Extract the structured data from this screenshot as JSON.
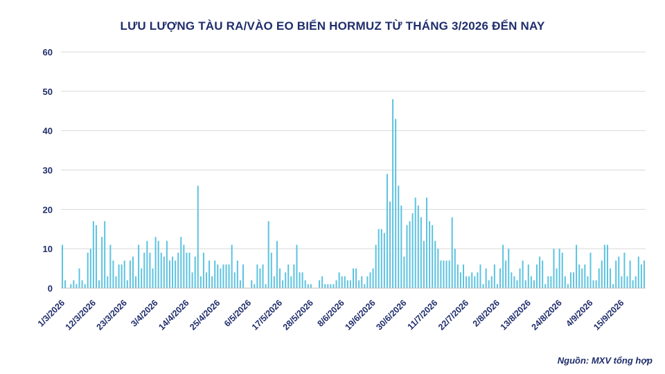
{
  "chart_data": {
    "type": "bar",
    "title": "LƯU LƯỢNG TÀU RA/VÀO EO BIỂN HORMUZ TỪ THÁNG 3/2026 ĐẾN NAY",
    "source": "Nguồn: MXV tổng hợp",
    "xlabel": "",
    "ylabel": "",
    "ylim": [
      0,
      60
    ],
    "yticks": [
      0,
      10,
      20,
      30,
      40,
      50,
      60
    ],
    "grid": true,
    "legend": "none",
    "bar_color": "#5ec3e0",
    "title_color": "#1f2d6b",
    "x_tick_labels": [
      "1/3/2026",
      "12/3/2026",
      "23/3/2026",
      "3/4/2026",
      "14/4/2026",
      "25/4/2026",
      "6/5/2026",
      "17/5/2026",
      "28/5/2026",
      "8/6/2026",
      "19/6/2026",
      "30/6/2026",
      "11/7/2026",
      "22/7/2026",
      "2/8/2026",
      "13/8/2026",
      "24/8/2026",
      "4/9/2026",
      "15/9/2026"
    ],
    "x_start": "1/3/2026",
    "x_end": "20/9/2026",
    "values": [
      11,
      2,
      0,
      1,
      2,
      1,
      5,
      2,
      1,
      9,
      10,
      17,
      16,
      2,
      13,
      17,
      3,
      11,
      7,
      3,
      6,
      6,
      7,
      2,
      7,
      8,
      3,
      11,
      5,
      9,
      12,
      9,
      5,
      13,
      12,
      9,
      8,
      12,
      7,
      8,
      7,
      9,
      13,
      11,
      9,
      9,
      4,
      8,
      26,
      3,
      9,
      4,
      7,
      3,
      7,
      6,
      5,
      6,
      6,
      6,
      11,
      4,
      7,
      2,
      6,
      0,
      0,
      2,
      1,
      6,
      5,
      6,
      1,
      17,
      9,
      3,
      12,
      5,
      2,
      4,
      6,
      3,
      6,
      11,
      4,
      4,
      2,
      1,
      1,
      0,
      0,
      2,
      3,
      1,
      1,
      1,
      1,
      2,
      4,
      3,
      3,
      2,
      2,
      5,
      5,
      2,
      3,
      1,
      3,
      4,
      5,
      11,
      15,
      15,
      14,
      29,
      22,
      48,
      43,
      26,
      21,
      8,
      16,
      17,
      19,
      23,
      21,
      18,
      12,
      23,
      17,
      16,
      12,
      10,
      7,
      7,
      7,
      7,
      18,
      10,
      6,
      4,
      6,
      3,
      3,
      4,
      3,
      4,
      6,
      1,
      5,
      2,
      3,
      6,
      1,
      5,
      11,
      7,
      10,
      4,
      3,
      2,
      5,
      7,
      2,
      6,
      3,
      2,
      6,
      8,
      7,
      1,
      3,
      3,
      10,
      5,
      10,
      9,
      3,
      1,
      4,
      4,
      11,
      6,
      5,
      6,
      3,
      9,
      2,
      2,
      5,
      7,
      11,
      11,
      5,
      1,
      7,
      8,
      3,
      9,
      3,
      7,
      2,
      3,
      8,
      6,
      7
    ]
  }
}
